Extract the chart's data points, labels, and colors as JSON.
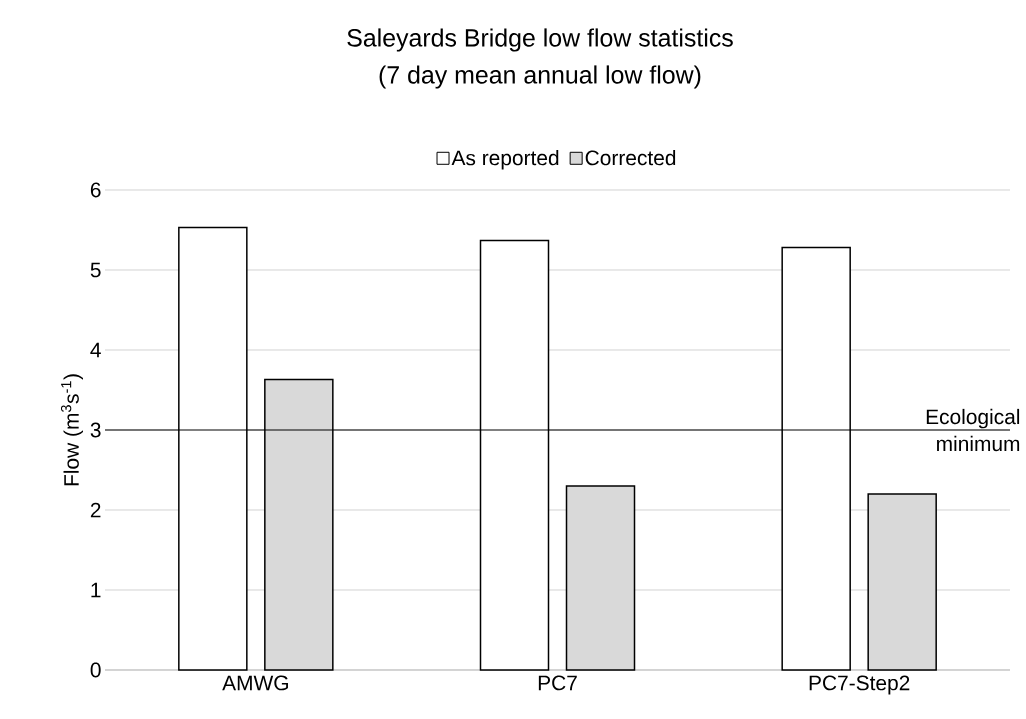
{
  "chart_data": {
    "type": "bar",
    "title": "Saleyards Bridge low flow statistics",
    "subtitle": "(7 day mean annual low flow)",
    "ylabel": "Flow (m$^{3}$s$^{-1}$)",
    "categories": [
      "AMWG",
      "PC7",
      "PC7-Step2"
    ],
    "series": [
      {
        "name": "As reported",
        "color": "#ffffff",
        "values": [
          5.53,
          5.37,
          5.28
        ]
      },
      {
        "name": "Corrected",
        "color": "#d9d9d9",
        "values": [
          3.63,
          2.3,
          2.2
        ]
      }
    ],
    "ylim": [
      0,
      6
    ],
    "yticks": [
      0,
      1,
      2,
      3,
      4,
      5,
      6
    ],
    "grid": "y",
    "legend": "top",
    "ref_lines": [
      {
        "axis": "y",
        "value": 3,
        "label": "Ecological minimum",
        "color": "#000000"
      }
    ]
  }
}
